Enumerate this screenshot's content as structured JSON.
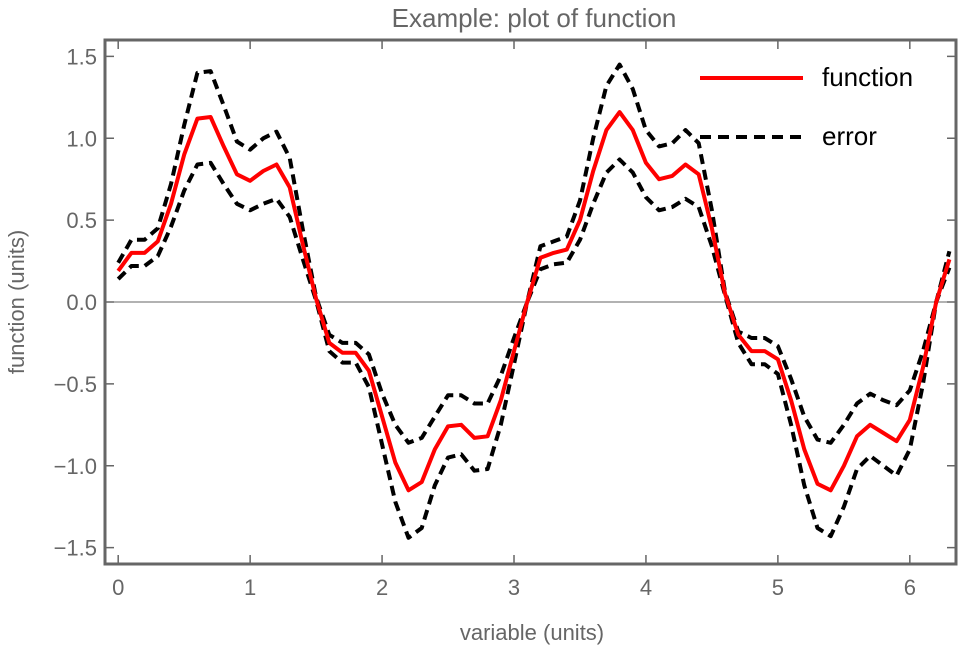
{
  "chart_data": {
    "type": "line",
    "title": "Example: plot of function",
    "xlabel": "variable (units)",
    "ylabel": "function (units)",
    "xlim": [
      -0.1,
      6.35
    ],
    "ylim": [
      -1.6,
      1.6
    ],
    "xticks": [
      0,
      1,
      2,
      3,
      4,
      5,
      6
    ],
    "xtick_labels": [
      "0",
      "1",
      "2",
      "3",
      "4",
      "5",
      "6"
    ],
    "yticks": [
      -1.5,
      -1.0,
      -0.5,
      0.0,
      0.5,
      1.0,
      1.5
    ],
    "ytick_labels": [
      "−1.5",
      "−1.0",
      "−0.5",
      "0.0",
      "0.5",
      "1.0",
      "1.5"
    ],
    "grid": false,
    "zero_line": true,
    "legend_position": "top-right",
    "x": [
      0.0,
      0.1,
      0.2,
      0.3,
      0.4,
      0.5,
      0.6,
      0.7,
      0.8,
      0.9,
      1.0,
      1.1,
      1.2,
      1.3,
      1.4,
      1.5,
      1.6,
      1.7,
      1.8,
      1.9,
      2.0,
      2.1,
      2.2,
      2.3,
      2.4,
      2.5,
      2.6,
      2.7,
      2.8,
      2.9,
      3.0,
      3.1,
      3.2,
      3.3,
      3.4,
      3.5,
      3.6,
      3.7,
      3.8,
      3.9,
      4.0,
      4.1,
      4.2,
      4.3,
      4.4,
      4.5,
      4.6,
      4.7,
      4.8,
      4.9,
      5.0,
      5.1,
      5.2,
      5.3,
      5.4,
      5.5,
      5.6,
      5.7,
      5.8,
      5.9,
      6.0,
      6.1,
      6.2,
      6.3
    ],
    "series": [
      {
        "name": "function",
        "color": "#ff0000",
        "style": "solid",
        "values": [
          0.19,
          0.3,
          0.3,
          0.37,
          0.6,
          0.9,
          1.12,
          1.13,
          0.95,
          0.78,
          0.74,
          0.8,
          0.84,
          0.7,
          0.35,
          0.02,
          -0.25,
          -0.31,
          -0.31,
          -0.42,
          -0.7,
          -0.98,
          -1.15,
          -1.1,
          -0.9,
          -0.76,
          -0.75,
          -0.83,
          -0.82,
          -0.6,
          -0.3,
          0.0,
          0.27,
          0.3,
          0.32,
          0.5,
          0.8,
          1.05,
          1.16,
          1.05,
          0.85,
          0.75,
          0.77,
          0.84,
          0.78,
          0.45,
          0.05,
          -0.2,
          -0.3,
          -0.3,
          -0.35,
          -0.6,
          -0.9,
          -1.11,
          -1.15,
          -1.0,
          -0.82,
          -0.75,
          -0.8,
          -0.85,
          -0.72,
          -0.4,
          0.0,
          0.26
        ]
      },
      {
        "name": "error",
        "color": "#000000",
        "style": "dashed",
        "values": [
          0.24,
          0.38,
          0.38,
          0.45,
          0.72,
          1.08,
          1.4,
          1.41,
          1.2,
          0.98,
          0.93,
          1.0,
          1.04,
          0.88,
          0.44,
          0.03,
          -0.2,
          -0.25,
          -0.25,
          -0.32,
          -0.56,
          -0.75,
          -0.86,
          -0.83,
          -0.7,
          -0.57,
          -0.57,
          -0.62,
          -0.62,
          -0.45,
          -0.22,
          0.0,
          0.34,
          0.37,
          0.4,
          0.62,
          1.0,
          1.32,
          1.45,
          1.3,
          1.05,
          0.95,
          0.97,
          1.05,
          0.97,
          0.56,
          0.06,
          -0.18,
          -0.22,
          -0.22,
          -0.27,
          -0.47,
          -0.7,
          -0.84,
          -0.86,
          -0.75,
          -0.62,
          -0.56,
          -0.6,
          -0.63,
          -0.54,
          -0.3,
          0.0,
          0.31
        ]
      },
      {
        "name": "",
        "color": "#000000",
        "style": "dashed",
        "values": [
          0.14,
          0.22,
          0.22,
          0.28,
          0.46,
          0.68,
          0.84,
          0.85,
          0.72,
          0.6,
          0.56,
          0.6,
          0.63,
          0.52,
          0.26,
          0.01,
          -0.3,
          -0.37,
          -0.37,
          -0.52,
          -0.87,
          -1.22,
          -1.44,
          -1.38,
          -1.12,
          -0.95,
          -0.93,
          -1.03,
          -1.02,
          -0.75,
          -0.38,
          0.0,
          0.2,
          0.23,
          0.24,
          0.38,
          0.6,
          0.79,
          0.87,
          0.79,
          0.64,
          0.56,
          0.58,
          0.63,
          0.58,
          0.34,
          0.04,
          -0.25,
          -0.38,
          -0.38,
          -0.44,
          -0.75,
          -1.12,
          -1.38,
          -1.43,
          -1.25,
          -1.02,
          -0.94,
          -1.0,
          -1.06,
          -0.9,
          -0.5,
          0.0,
          0.21
        ]
      }
    ]
  }
}
